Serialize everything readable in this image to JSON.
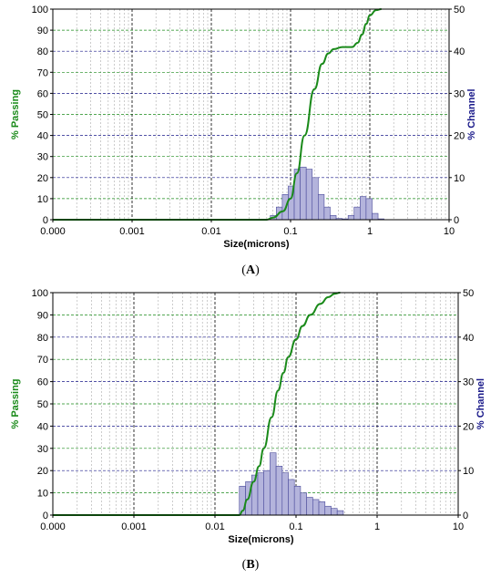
{
  "chart_data": [
    {
      "type": "bar",
      "panel_label": "A",
      "xlabel": "Size(microns)",
      "ylabel_left": "% Passing",
      "ylabel_right": "% Channel",
      "x_scale": "log",
      "xlim": [
        0.0001,
        10
      ],
      "x_tick_labels": [
        "0.000",
        "0.001",
        "0.01",
        "0.1",
        "1",
        "10"
      ],
      "ylim_left": [
        0,
        100
      ],
      "ylim_right": [
        0,
        50
      ],
      "y_tick_labels_left": [
        "0",
        "10",
        "20",
        "30",
        "40",
        "50",
        "60",
        "70",
        "80",
        "90",
        "100"
      ],
      "y_tick_labels_right": [
        "0",
        "10",
        "20",
        "30",
        "40",
        "50"
      ],
      "grid": true,
      "colors": {
        "passing": "#1a8a1a",
        "channel": "#1a1a8a",
        "bars_fill": "#b4b4dc",
        "bars_stroke": "#4a4a9a",
        "grid_major": "#000000",
        "grid_minor": "#aaaaaa",
        "grid_left": "#1a8a1a",
        "grid_right": "#1a1a8a"
      },
      "series": [
        {
          "name": "% Channel",
          "kind": "histogram",
          "x": [
            0.0605,
            0.072,
            0.0857,
            0.102,
            0.1214,
            0.1444,
            0.1719,
            0.2045,
            0.2434,
            0.2896,
            0.3446,
            0.4101,
            0.488,
            0.5807,
            0.691,
            0.8223,
            0.9785,
            1.1644,
            1.3856
          ],
          "values": [
            1,
            3,
            6,
            8,
            12,
            12.5,
            12,
            10,
            6,
            3,
            1,
            0.3,
            0.2,
            1,
            3,
            5.5,
            5,
            1.5,
            0.2
          ]
        },
        {
          "name": "% Passing",
          "kind": "line",
          "x": [
            0.0001,
            0.05,
            0.06,
            0.08,
            0.1,
            0.12,
            0.15,
            0.2,
            0.25,
            0.3,
            0.35,
            0.45,
            0.6,
            0.7,
            0.8,
            0.9,
            1.0,
            1.2,
            1.4
          ],
          "values": [
            0,
            0,
            1,
            4,
            10,
            22,
            40,
            62,
            74,
            79,
            81,
            82,
            82,
            84,
            88,
            93,
            97,
            99.5,
            100
          ]
        }
      ]
    },
    {
      "type": "bar",
      "panel_label": "B",
      "xlabel": "Size(microns)",
      "ylabel_left": "% Passing",
      "ylabel_right": "% Channel",
      "x_scale": "log",
      "xlim": [
        0.0001,
        10
      ],
      "x_tick_labels": [
        "0.000",
        "0.001",
        "0.01",
        "0.1",
        "1",
        "10"
      ],
      "ylim_left": [
        0,
        100
      ],
      "ylim_right": [
        0,
        50
      ],
      "y_tick_labels_left": [
        "0",
        "10",
        "20",
        "30",
        "40",
        "50",
        "60",
        "70",
        "80",
        "90",
        "100"
      ],
      "y_tick_labels_right": [
        "0",
        "10",
        "20",
        "30",
        "40",
        "50"
      ],
      "grid": true,
      "colors": {
        "passing": "#1a8a1a",
        "channel": "#1a1a8a",
        "bars_fill": "#b4b4dc",
        "bars_stroke": "#4a4a9a",
        "grid_major": "#000000",
        "grid_minor": "#aaaaaa",
        "grid_left": "#1a8a1a",
        "grid_right": "#1a1a8a"
      },
      "series": [
        {
          "name": "% Channel",
          "kind": "histogram",
          "x": [
            0.0218,
            0.026,
            0.0309,
            0.0368,
            0.0437,
            0.052,
            0.0619,
            0.0736,
            0.0875,
            0.1041,
            0.1239,
            0.1474,
            0.1753,
            0.2085,
            0.2481,
            0.2951,
            0.3511
          ],
          "values": [
            6.5,
            7.5,
            9,
            9.5,
            10,
            14,
            11,
            9.5,
            8,
            6.5,
            5,
            4,
            3.5,
            3,
            2,
            1.5,
            1
          ]
        },
        {
          "name": "% Passing",
          "kind": "line",
          "x": [
            0.0001,
            0.02,
            0.022,
            0.025,
            0.03,
            0.035,
            0.04,
            0.05,
            0.06,
            0.07,
            0.08,
            0.1,
            0.12,
            0.15,
            0.2,
            0.25,
            0.3,
            0.35
          ],
          "values": [
            0,
            0,
            2,
            7,
            15,
            22,
            30,
            44,
            56,
            64,
            71,
            79,
            85,
            90,
            95,
            98,
            99.5,
            100
          ]
        }
      ]
    }
  ]
}
